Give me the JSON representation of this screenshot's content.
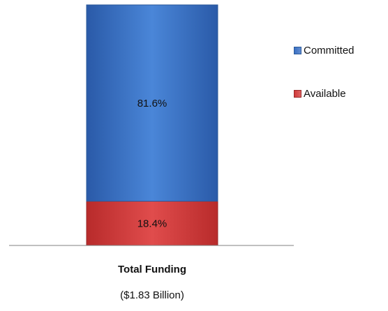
{
  "chart_data": {
    "type": "bar",
    "stacked": true,
    "percent": true,
    "categories": [
      "Total Funding"
    ],
    "category_sublabel": "($1.83 Billion)",
    "series": [
      {
        "name": "Committed",
        "values": [
          81.6
        ],
        "label": "81.6%",
        "color": "#3a70c4"
      },
      {
        "name": "Available",
        "values": [
          18.4
        ],
        "label": "18.4%",
        "color": "#d23a3a"
      }
    ],
    "ylim": [
      0,
      100
    ],
    "legend_position": "right",
    "grid": false
  }
}
